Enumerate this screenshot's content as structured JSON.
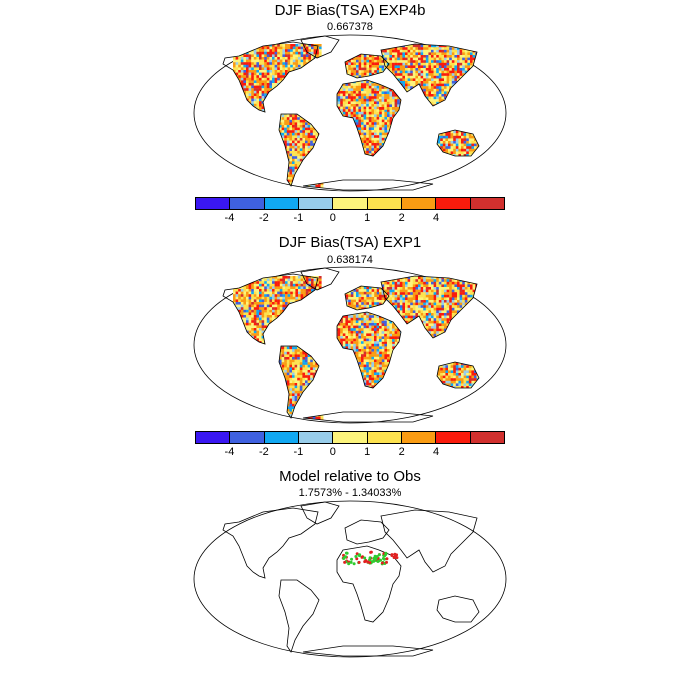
{
  "panels": [
    {
      "title": "DJF Bias(TSA) EXP4b",
      "subtitle": "0.667378"
    },
    {
      "title": "DJF Bias(TSA) EXP1",
      "subtitle": "0.638174"
    },
    {
      "title": "Model relative to Obs",
      "subtitle": "1.7573% - 1.34033%"
    }
  ],
  "colorbar": {
    "colors": [
      "#3a17f2",
      "#3f61e0",
      "#11a8f2",
      "#98cdea",
      "#fcf47c",
      "#fde24f",
      "#fa9c13",
      "#fa1b0c",
      "#d1302e"
    ],
    "labels": [
      "-4",
      "-2",
      "-1",
      "0",
      "1",
      "2",
      "4"
    ]
  },
  "legend_colors": {
    "better": "#2ecc2e",
    "worse": "#e02020"
  }
}
